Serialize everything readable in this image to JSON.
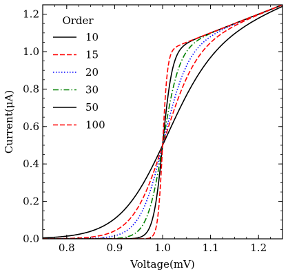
{
  "chart_data": {
    "type": "line",
    "xlabel": "Voltage(mV)",
    "ylabel": "Current(μA)",
    "xlim": [
      0.75,
      1.25
    ],
    "ylim": [
      0.0,
      1.25
    ],
    "xticks": [
      0.8,
      0.9,
      1.0,
      1.1,
      1.2
    ],
    "xtick_labels": [
      "0.8",
      "0.9",
      "1.0",
      "1.1",
      "1.2"
    ],
    "yticks": [
      0.0,
      0.2,
      0.4,
      0.6,
      0.8,
      1.0,
      1.2
    ],
    "ytick_labels": [
      "0.0",
      "0.2",
      "0.4",
      "0.6",
      "0.8",
      "1.0",
      "1.2"
    ],
    "grid": false,
    "legend": {
      "title": "Order",
      "placement": "top-left"
    },
    "series": [
      {
        "name": "10",
        "order": 10,
        "color": "#000000",
        "style": "solid"
      },
      {
        "name": "15",
        "order": 15,
        "color": "#ff0000",
        "style": "dashed"
      },
      {
        "name": "20",
        "order": 20,
        "color": "#0000ff",
        "style": "dotted"
      },
      {
        "name": "30",
        "order": 30,
        "color": "#008000",
        "style": "dashdot"
      },
      {
        "name": "50",
        "order": 50,
        "color": "#000000",
        "style": "solid"
      },
      {
        "name": "100",
        "order": 100,
        "color": "#ff0000",
        "style": "dashed"
      }
    ]
  }
}
